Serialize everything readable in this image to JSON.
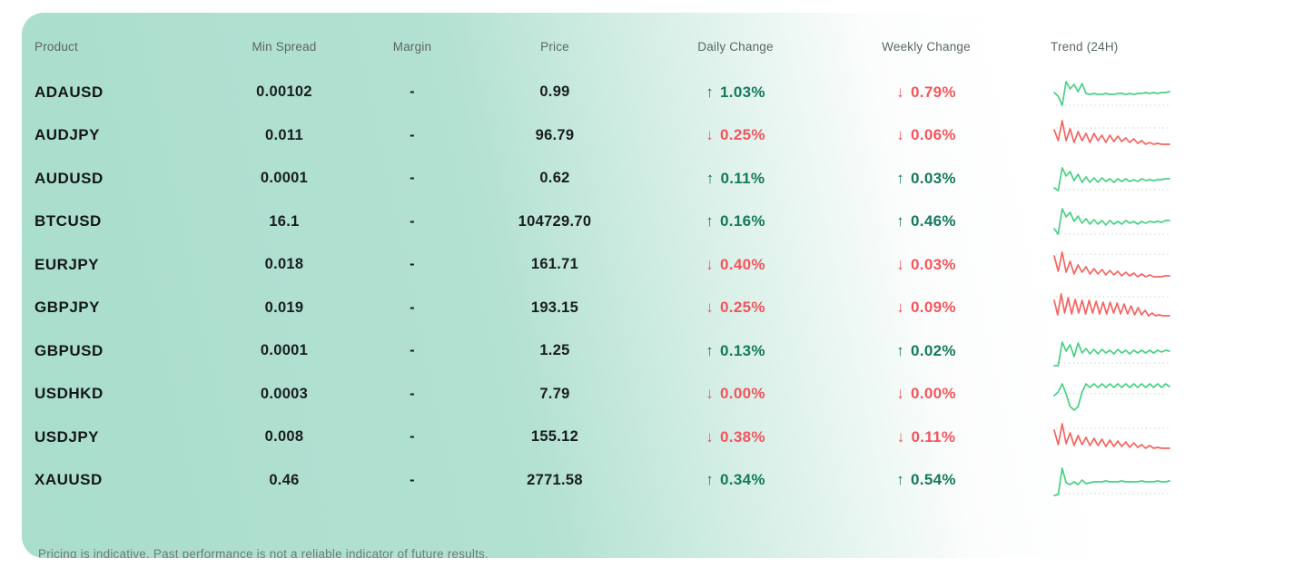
{
  "colors": {
    "card_green": "#a9ddcc",
    "positive": "#14795d",
    "negative": "#f3555b",
    "spark_positive": "#47d183",
    "spark_negative": "#f6635f",
    "baseline_dotted": "#d5dcda"
  },
  "icons": {
    "up_arrow": "↑",
    "down_arrow": "↓"
  },
  "table": {
    "columns": [
      {
        "key": "product",
        "label": "Product"
      },
      {
        "key": "min_spread",
        "label": "Min Spread"
      },
      {
        "key": "margin",
        "label": "Margin"
      },
      {
        "key": "price",
        "label": "Price"
      },
      {
        "key": "daily_change",
        "label": "Daily Change"
      },
      {
        "key": "weekly_change",
        "label": "Weekly Change"
      },
      {
        "key": "trend",
        "label": "Trend (24H)"
      }
    ],
    "rows": [
      {
        "product": "ADAUSD",
        "min_spread": "0.00102",
        "margin": "-",
        "price": "0.99",
        "daily_change": {
          "direction": "up",
          "value": "1.03%"
        },
        "weekly_change": {
          "direction": "down",
          "value": "0.79%"
        },
        "trend": {
          "color": "green",
          "baseline": 34,
          "points": [
            20,
            24,
            34,
            8,
            16,
            11,
            19,
            10,
            21,
            22,
            21,
            22,
            22,
            21,
            22,
            22,
            21,
            21,
            22,
            21,
            22,
            21,
            21,
            20,
            21,
            20,
            21,
            20,
            20,
            19
          ]
        }
      },
      {
        "product": "AUDJPY",
        "min_spread": "0.011",
        "margin": "-",
        "price": "96.79",
        "daily_change": {
          "direction": "down",
          "value": "0.25%"
        },
        "weekly_change": {
          "direction": "down",
          "value": "0.06%"
        },
        "trend": {
          "color": "red",
          "baseline": 12,
          "points": [
            14,
            26,
            4,
            26,
            13,
            28,
            16,
            26,
            18,
            28,
            18,
            26,
            20,
            28,
            20,
            27,
            21,
            27,
            23,
            28,
            24,
            29,
            26,
            30,
            28,
            30,
            29,
            30,
            30,
            30
          ]
        }
      },
      {
        "product": "AUDUSD",
        "min_spread": "0.0001",
        "margin": "-",
        "price": "0.62",
        "daily_change": {
          "direction": "up",
          "value": "0.11%"
        },
        "weekly_change": {
          "direction": "up",
          "value": "0.03%"
        },
        "trend": {
          "color": "green",
          "baseline": 32,
          "points": [
            30,
            33,
            8,
            17,
            12,
            22,
            15,
            24,
            18,
            24,
            19,
            24,
            19,
            23,
            20,
            24,
            20,
            23,
            20,
            23,
            21,
            23,
            20,
            22,
            21,
            22,
            21,
            21,
            20,
            20
          ]
        }
      },
      {
        "product": "BTCUSD",
        "min_spread": "16.1",
        "margin": "-",
        "price": "104729.70",
        "daily_change": {
          "direction": "up",
          "value": "0.16%"
        },
        "weekly_change": {
          "direction": "up",
          "value": "0.46%"
        },
        "trend": {
          "color": "green",
          "baseline": 34,
          "points": [
            28,
            34,
            6,
            15,
            10,
            20,
            14,
            22,
            17,
            23,
            18,
            23,
            19,
            24,
            19,
            23,
            20,
            23,
            19,
            22,
            20,
            23,
            20,
            22,
            20,
            21,
            20,
            21,
            19,
            19
          ]
        }
      },
      {
        "product": "EURJPY",
        "min_spread": "0.018",
        "margin": "-",
        "price": "161.71",
        "daily_change": {
          "direction": "down",
          "value": "0.40%"
        },
        "weekly_change": {
          "direction": "down",
          "value": "0.03%"
        },
        "trend": {
          "color": "red",
          "baseline": 8,
          "points": [
            10,
            27,
            6,
            28,
            16,
            30,
            20,
            28,
            22,
            30,
            24,
            30,
            25,
            31,
            26,
            31,
            27,
            32,
            28,
            32,
            29,
            33,
            30,
            33,
            31,
            33,
            33,
            33,
            32,
            32
          ]
        }
      },
      {
        "product": "GBPJPY",
        "min_spread": "0.019",
        "margin": "-",
        "price": "193.15",
        "daily_change": {
          "direction": "down",
          "value": "0.25%"
        },
        "weekly_change": {
          "direction": "down",
          "value": "0.09%"
        },
        "trend": {
          "color": "red",
          "baseline": 8,
          "points": [
            12,
            28,
            5,
            26,
            9,
            27,
            11,
            26,
            12,
            27,
            12,
            26,
            13,
            27,
            14,
            27,
            14,
            26,
            15,
            27,
            16,
            27,
            18,
            28,
            20,
            28,
            23,
            29,
            26,
            29,
            28,
            29,
            29,
            29
          ]
        }
      },
      {
        "product": "GBPUSD",
        "min_spread": "0.0001",
        "margin": "-",
        "price": "1.25",
        "daily_change": {
          "direction": "up",
          "value": "0.13%"
        },
        "weekly_change": {
          "direction": "up",
          "value": "0.02%"
        },
        "trend": {
          "color": "green",
          "baseline": 33,
          "points": [
            36,
            36,
            10,
            20,
            13,
            26,
            11,
            22,
            17,
            23,
            18,
            23,
            18,
            22,
            19,
            23,
            18,
            22,
            19,
            23,
            19,
            22,
            19,
            22,
            19,
            22,
            19,
            21,
            19,
            20
          ]
        }
      },
      {
        "product": "USDHKD",
        "min_spread": "0.0003",
        "margin": "-",
        "price": "7.79",
        "daily_change": {
          "direction": "down",
          "value": "0.00%"
        },
        "weekly_change": {
          "direction": "down",
          "value": "0.00%"
        },
        "trend": {
          "color": "green",
          "baseline": 20,
          "points": [
            22,
            18,
            9,
            20,
            34,
            38,
            34,
            18,
            9,
            13,
            9,
            13,
            9,
            13,
            9,
            13,
            9,
            13,
            9,
            13,
            9,
            13,
            9,
            13,
            9,
            13,
            9,
            13,
            9,
            12
          ]
        }
      },
      {
        "product": "USDJPY",
        "min_spread": "0.008",
        "margin": "-",
        "price": "155.12",
        "daily_change": {
          "direction": "down",
          "value": "0.38%"
        },
        "weekly_change": {
          "direction": "down",
          "value": "0.11%"
        },
        "trend": {
          "color": "red",
          "baseline": 10,
          "points": [
            12,
            28,
            5,
            27,
            15,
            29,
            18,
            28,
            20,
            29,
            21,
            29,
            22,
            30,
            23,
            30,
            24,
            30,
            25,
            31,
            26,
            31,
            28,
            32,
            29,
            32,
            31,
            32,
            32,
            32
          ]
        }
      },
      {
        "product": "XAUUSD",
        "min_spread": "0.46",
        "margin": "-",
        "price": "2771.58",
        "daily_change": {
          "direction": "up",
          "value": "0.34%"
        },
        "weekly_change": {
          "direction": "up",
          "value": "0.54%"
        },
        "trend": {
          "color": "green",
          "baseline": 35,
          "points": [
            37,
            36,
            7,
            23,
            25,
            22,
            25,
            20,
            24,
            23,
            22,
            22,
            22,
            21,
            22,
            22,
            22,
            21,
            22,
            22,
            22,
            22,
            21,
            22,
            22,
            22,
            21,
            22,
            22,
            21
          ]
        }
      }
    ]
  },
  "footer": {
    "disclaimer": "Pricing is indicative. Past performance is not a reliable indicator of future results."
  }
}
